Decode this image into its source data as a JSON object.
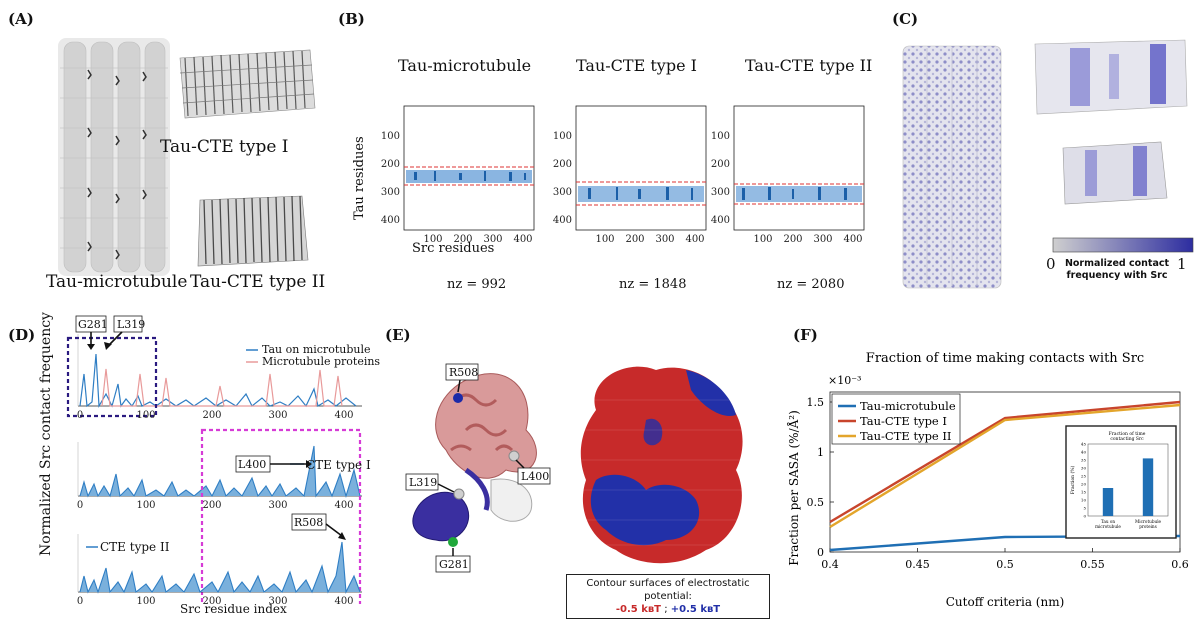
{
  "panels": {
    "a": {
      "label": "(A)",
      "cap_mt": "Tau-microtubule",
      "cap_t1": "Tau-CTE type I",
      "cap_t2": "Tau-CTE type II"
    },
    "b": {
      "label": "(B)",
      "ylabel": "Tau residues",
      "xlabel": "Src residues",
      "titles": [
        "Tau-microtubule",
        "Tau-CTE type I",
        "Tau-CTE type II"
      ],
      "nz": [
        "nz = 992",
        "nz = 1848",
        "nz = 2080"
      ],
      "yticks": [
        "100",
        "200",
        "300",
        "400"
      ],
      "xticks": [
        "100",
        "200",
        "300",
        "400"
      ]
    },
    "c": {
      "label": "(C)",
      "cb_min": "0",
      "cb_max": "1",
      "cb_label_1": "Normalized contact",
      "cb_label_2": "frequency with Src"
    },
    "d": {
      "label": "(D)",
      "ylabel": "Normalized Src contact frequency",
      "xlabel": "Src residue index",
      "legend_top": [
        "Tau on microtubule",
        "Microtubule proteins"
      ],
      "legend_mid": "CTE type I",
      "legend_bot": "CTE type II",
      "callouts": [
        "G281",
        "L319",
        "L400",
        "R508"
      ],
      "xticks": [
        "0",
        "100",
        "200",
        "300",
        "400"
      ]
    },
    "e": {
      "label": "(E)",
      "residues": [
        "R508",
        "L400",
        "L319",
        "G281"
      ],
      "cap_line1": "Contour surfaces of electrostatic potential:",
      "cap_neg": "-0.5 kʙT",
      "cap_sep": " ; ",
      "cap_pos": "+0.5 kʙT"
    },
    "f": {
      "label": "(F)"
    }
  },
  "chart_data": {
    "type": "line",
    "title": "Fraction of time making contacts with Src",
    "xlabel": "Cutoff criteria (nm)",
    "ylabel": "Fraction per SASA (%/Å²)",
    "multiplier": "×10⁻³",
    "x": [
      0.4,
      0.5,
      0.6
    ],
    "xlim": [
      0.4,
      0.6
    ],
    "ylim": [
      0,
      1.6
    ],
    "xticks": [
      "0.4",
      "0.45",
      "0.5",
      "0.55",
      "0.6"
    ],
    "yticks": [
      "0",
      "0.5",
      "1",
      "1.5"
    ],
    "series": [
      {
        "name": "Tau-microtubule",
        "color": "#1f6fb4",
        "values": [
          0.02,
          0.15,
          0.16
        ]
      },
      {
        "name": "Tau-CTE type I",
        "color": "#c8452c",
        "values": [
          0.3,
          1.34,
          1.5
        ]
      },
      {
        "name": "Tau-CTE type II",
        "color": "#e3a52b",
        "values": [
          0.25,
          1.32,
          1.47
        ]
      }
    ],
    "inset": {
      "type": "bar",
      "title_1": "Fraction of time",
      "title_2": "contacting Src",
      "ylabel": "Fraction (%)",
      "categories": [
        "Tau on microtubule",
        "Microtubule proteins"
      ],
      "cat_lines": [
        [
          "Tau on",
          "microtubule"
        ],
        [
          "Microtubule",
          "proteins"
        ]
      ],
      "values": [
        17.5,
        36
      ],
      "ylim": [
        0,
        45
      ],
      "yticks": [
        "0",
        "5",
        "10",
        "15",
        "20",
        "25",
        "30",
        "35",
        "40",
        "45"
      ],
      "color": "#1f6fb4"
    }
  }
}
